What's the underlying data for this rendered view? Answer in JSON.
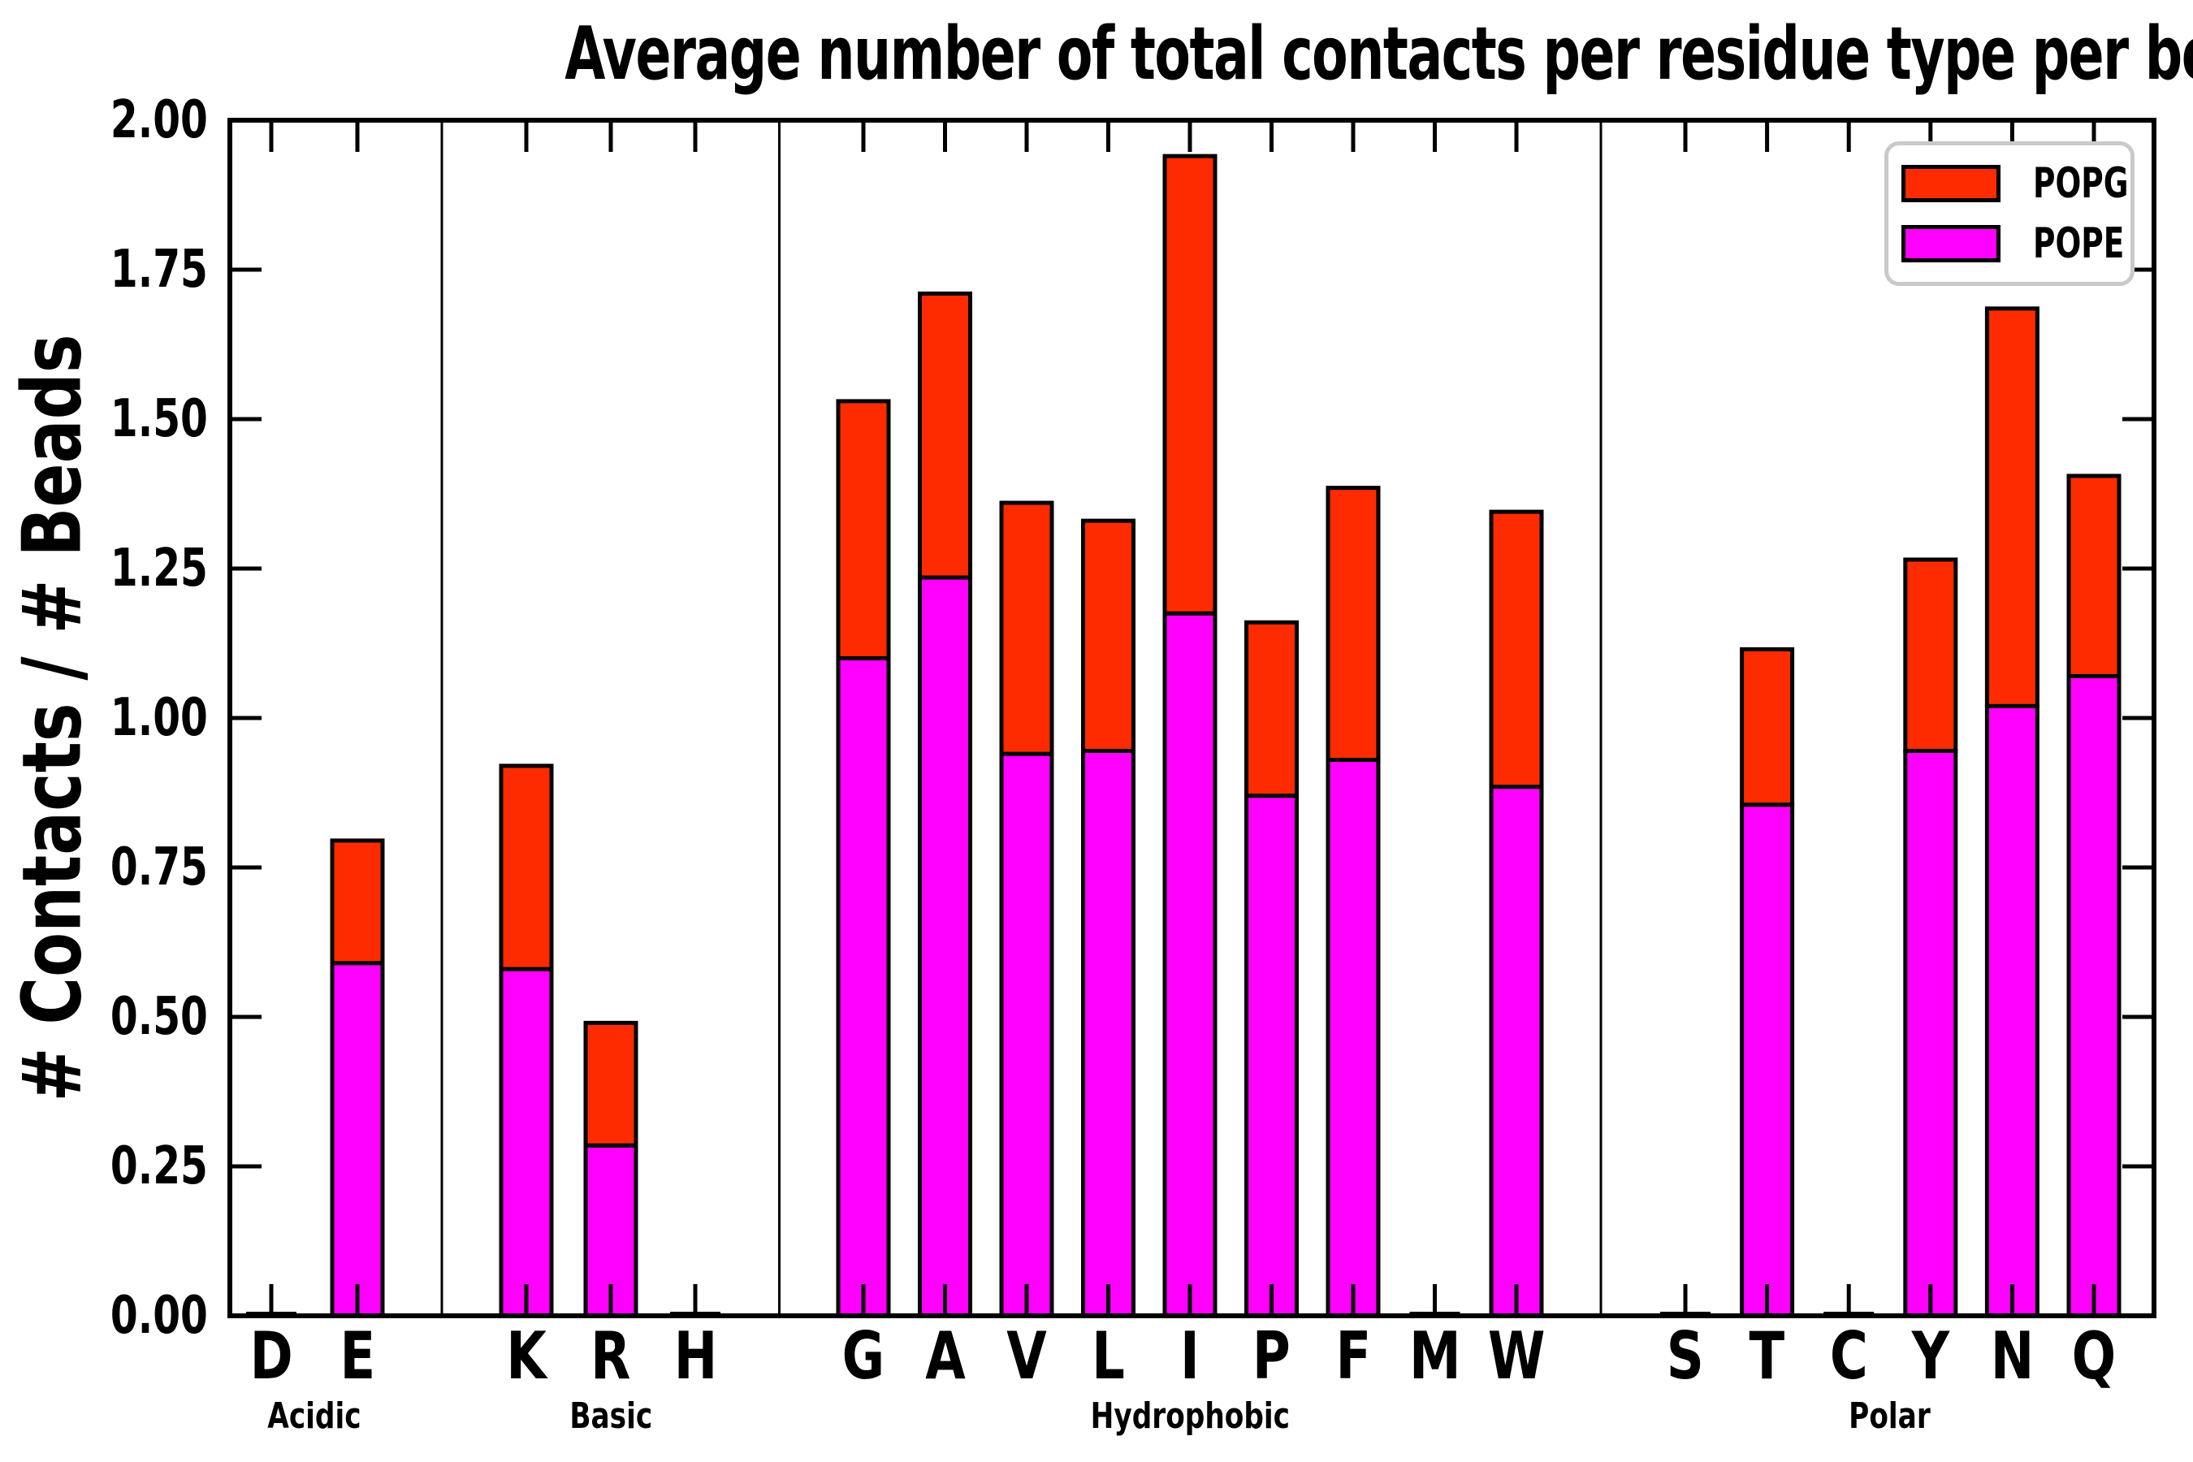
{
  "chart_data": {
    "type": "bar",
    "stacked": true,
    "title": "Average number of total contacts per residue type per bead",
    "ylabel": "# Contacts / # Beads",
    "xlabel": "",
    "ylim": [
      0,
      2
    ],
    "ytick_labels": [
      "0.00",
      "0.25",
      "0.50",
      "0.75",
      "1.00",
      "1.25",
      "1.50",
      "1.75",
      "2.00"
    ],
    "grid": false,
    "legend_position": "upper right",
    "categories": [
      "D",
      "E",
      "K",
      "R",
      "H",
      "G",
      "A",
      "V",
      "L",
      "I",
      "P",
      "F",
      "M",
      "W",
      "S",
      "T",
      "C",
      "Y",
      "N",
      "Q"
    ],
    "groups": [
      {
        "label": "Acidic",
        "members": [
          "D",
          "E"
        ]
      },
      {
        "label": "Basic",
        "members": [
          "K",
          "R",
          "H"
        ]
      },
      {
        "label": "Hydrophobic",
        "members": [
          "G",
          "A",
          "V",
          "L",
          "I",
          "P",
          "F",
          "M",
          "W"
        ]
      },
      {
        "label": "Polar",
        "members": [
          "S",
          "T",
          "C",
          "Y",
          "N",
          "Q"
        ]
      }
    ],
    "series": [
      {
        "name": "POPG",
        "color": "#ff2b00",
        "values": [
          0,
          0.205,
          0.34,
          0.205,
          0,
          0.43,
          0.475,
          0.42,
          0.385,
          0.765,
          0.29,
          0.455,
          0,
          0.46,
          0,
          0.26,
          0,
          0.32,
          0.665,
          0.335
        ]
      },
      {
        "name": "POPE",
        "color": "#ff00ff",
        "values": [
          0,
          0.59,
          0.58,
          0.285,
          0,
          1.1,
          1.235,
          0.94,
          0.945,
          1.175,
          0.87,
          0.93,
          0,
          0.885,
          0,
          0.855,
          0,
          0.945,
          1.02,
          1.07
        ]
      }
    ],
    "totals": [
      0,
      0.795,
      0.92,
      0.49,
      0,
      1.53,
      1.71,
      1.36,
      1.33,
      1.94,
      1.16,
      1.385,
      0,
      1.345,
      0,
      1.115,
      0,
      1.265,
      1.685,
      1.405
    ]
  }
}
